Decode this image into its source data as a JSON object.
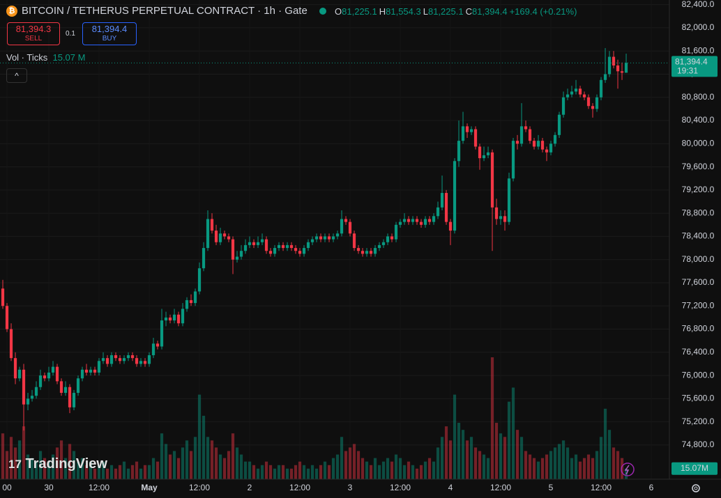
{
  "header": {
    "symbol": "BITCOIN / TETHERUS PERPETUAL CONTRACT · 1h · Gate",
    "ohlc": [
      {
        "label": "O",
        "value": "81,225.1"
      },
      {
        "label": "H",
        "value": "81,554.3"
      },
      {
        "label": "L",
        "value": "81,225.1"
      },
      {
        "label": "C",
        "value": "81,394.4"
      }
    ],
    "change": "+169.4 (+0.21%)",
    "sell_price": "81,394.3",
    "sell_label": "SELL",
    "qty": "0.1",
    "buy_price": "81,394.4",
    "buy_label": "BUY",
    "volume_label": "Vol · Ticks",
    "volume_value": "15.07 M",
    "logo": "TradingView"
  },
  "chart_data": {
    "type": "candlestick",
    "open": [
      77500,
      77200,
      76800,
      76300,
      75950,
      76100,
      75500,
      75600,
      75650,
      75800,
      76000,
      75950,
      76050,
      76150,
      75900,
      75700,
      75800,
      75450,
      75700,
      75950,
      76100,
      76050,
      76100,
      76050,
      76250,
      76300,
      76200,
      76350,
      76300,
      76250,
      76300,
      76350,
      76300,
      76200,
      76250,
      76200,
      76350,
      76550,
      76500,
      76950,
      77000,
      76950,
      77050,
      76900,
      77150,
      77300,
      77250,
      77450,
      77850,
      78200,
      78700,
      78500,
      78300,
      78450,
      78400,
      78350,
      78000,
      78050,
      78150,
      78250,
      78300,
      78250,
      78300,
      78350,
      78150,
      78100,
      78200,
      78250,
      78200,
      78250,
      78200,
      78150,
      78100,
      78200,
      78300,
      78350,
      78400,
      78350,
      78400,
      78350,
      78400,
      78450,
      78700,
      78650,
      78450,
      78200,
      78150,
      78100,
      78150,
      78100,
      78200,
      78250,
      78300,
      78400,
      78350,
      78600,
      78650,
      78700,
      78650,
      78700,
      78650,
      78600,
      78700,
      78650,
      78750,
      78900,
      79150,
      78650,
      78500,
      79700,
      80050,
      80300,
      80200,
      80250,
      79950,
      79750,
      79800,
      79850,
      78900,
      78700,
      78750,
      78650,
      79400,
      80050,
      80000,
      80300,
      80250,
      80050,
      79950,
      80050,
      79900,
      79850,
      80000,
      80150,
      80500,
      80800,
      80850,
      80900,
      80950,
      80850,
      80800,
      80650,
      80600,
      80800,
      81100,
      81200,
      81500,
      81350,
      81250,
      81225.1
    ],
    "high": [
      77650,
      77250,
      76900,
      76400,
      76150,
      76200,
      75700,
      75750,
      75900,
      76100,
      76050,
      76150,
      76250,
      76200,
      75950,
      75900,
      75850,
      75750,
      76000,
      76150,
      76200,
      76150,
      76150,
      76300,
      76400,
      76350,
      76400,
      76400,
      76350,
      76350,
      76400,
      76400,
      76350,
      76300,
      76300,
      76400,
      76650,
      76600,
      77150,
      77100,
      77050,
      77150,
      77100,
      77250,
      77350,
      77400,
      77500,
      77950,
      78300,
      78850,
      78800,
      78600,
      78550,
      78500,
      78450,
      78400,
      78150,
      78250,
      78350,
      78400,
      78350,
      78400,
      78450,
      78400,
      78200,
      78250,
      78300,
      78300,
      78300,
      78300,
      78250,
      78200,
      78250,
      78350,
      78400,
      78450,
      78450,
      78450,
      78450,
      78450,
      78500,
      78850,
      78750,
      78700,
      78500,
      78250,
      78200,
      78200,
      78200,
      78250,
      78300,
      78350,
      78450,
      78450,
      78650,
      78700,
      78800,
      78750,
      78750,
      78750,
      78700,
      78750,
      78750,
      78800,
      79000,
      79450,
      79200,
      78700,
      79750,
      80400,
      80550,
      80350,
      80300,
      80300,
      80000,
      79950,
      79950,
      79900,
      79050,
      78850,
      78850,
      79500,
      80100,
      80150,
      80700,
      80400,
      80300,
      80100,
      80150,
      80100,
      79950,
      80050,
      80200,
      80550,
      80900,
      80950,
      81000,
      81100,
      81000,
      80900,
      80850,
      80700,
      80850,
      81150,
      81650,
      81600,
      81600,
      81450,
      81400,
      81554.3
    ],
    "low": [
      77150,
      76750,
      76250,
      75850,
      75900,
      75050,
      75400,
      75550,
      75600,
      75750,
      75900,
      75900,
      76000,
      75850,
      75650,
      75650,
      75350,
      75400,
      75650,
      75900,
      76000,
      76000,
      76000,
      76000,
      76200,
      76150,
      76150,
      76250,
      76200,
      76200,
      76250,
      76250,
      76150,
      76150,
      76150,
      76150,
      76300,
      76450,
      76450,
      76850,
      76900,
      76900,
      76850,
      76850,
      77100,
      77200,
      77200,
      77400,
      77800,
      78150,
      78450,
      78250,
      78250,
      78350,
      78300,
      77750,
      77950,
      78000,
      78100,
      78200,
      78200,
      78200,
      78250,
      78100,
      78050,
      78050,
      78150,
      78150,
      78150,
      78150,
      78100,
      78050,
      78050,
      78150,
      78250,
      78300,
      78300,
      78300,
      78300,
      78300,
      78350,
      78400,
      78600,
      78400,
      78150,
      78100,
      78050,
      78050,
      78050,
      78050,
      78150,
      78200,
      78250,
      78300,
      78300,
      78550,
      78600,
      78600,
      78600,
      78600,
      78550,
      78550,
      78600,
      78600,
      78700,
      78850,
      78600,
      78250,
      78450,
      79600,
      80000,
      80100,
      80150,
      79900,
      79550,
      79700,
      79750,
      78150,
      78600,
      78600,
      78500,
      78600,
      79350,
      79900,
      79950,
      80200,
      80000,
      79900,
      79900,
      79850,
      79700,
      79800,
      79950,
      80100,
      80450,
      80750,
      80800,
      80850,
      80800,
      80750,
      80600,
      80450,
      80550,
      80750,
      81050,
      81150,
      81300,
      80950,
      81100,
      81225.1
    ],
    "close": [
      77200,
      76800,
      76300,
      75950,
      76100,
      75500,
      75600,
      75650,
      75800,
      76000,
      75950,
      76050,
      76150,
      75900,
      75700,
      75800,
      75450,
      75700,
      75950,
      76100,
      76050,
      76100,
      76050,
      76250,
      76300,
      76200,
      76350,
      76300,
      76250,
      76300,
      76350,
      76300,
      76200,
      76250,
      76200,
      76350,
      76550,
      76500,
      76950,
      77000,
      76950,
      77050,
      76900,
      77150,
      77300,
      77250,
      77450,
      77850,
      78200,
      78700,
      78500,
      78300,
      78450,
      78400,
      78350,
      78000,
      78050,
      78150,
      78250,
      78300,
      78250,
      78300,
      78350,
      78150,
      78100,
      78200,
      78250,
      78200,
      78250,
      78200,
      78150,
      78100,
      78200,
      78300,
      78350,
      78400,
      78350,
      78400,
      78350,
      78400,
      78450,
      78700,
      78650,
      78450,
      78200,
      78150,
      78100,
      78150,
      78100,
      78200,
      78250,
      78300,
      78400,
      78350,
      78600,
      78650,
      78700,
      78650,
      78700,
      78650,
      78600,
      78700,
      78650,
      78750,
      78900,
      79150,
      78650,
      78500,
      79700,
      80050,
      80300,
      80200,
      80250,
      79950,
      79750,
      79800,
      79850,
      78900,
      78700,
      78750,
      78650,
      79400,
      80050,
      80000,
      80300,
      80250,
      80050,
      79950,
      80050,
      79900,
      79850,
      80000,
      80150,
      80500,
      80800,
      80850,
      80900,
      80950,
      80850,
      80800,
      80650,
      80600,
      80800,
      81100,
      81200,
      81500,
      81350,
      81250,
      81225.1,
      81394.4
    ],
    "volume": [
      65,
      40,
      60,
      45,
      55,
      75,
      35,
      30,
      25,
      40,
      30,
      25,
      35,
      45,
      55,
      30,
      50,
      40,
      25,
      30,
      20,
      25,
      15,
      20,
      25,
      15,
      20,
      15,
      20,
      25,
      15,
      20,
      25,
      15,
      20,
      20,
      30,
      25,
      65,
      50,
      35,
      40,
      30,
      45,
      55,
      40,
      60,
      120,
      90,
      60,
      55,
      45,
      35,
      30,
      40,
      65,
      45,
      35,
      25,
      25,
      20,
      15,
      20,
      25,
      20,
      15,
      20,
      20,
      15,
      15,
      20,
      25,
      20,
      15,
      20,
      15,
      20,
      25,
      20,
      30,
      35,
      60,
      40,
      45,
      50,
      40,
      30,
      25,
      20,
      30,
      20,
      25,
      30,
      25,
      35,
      30,
      20,
      25,
      20,
      15,
      20,
      25,
      30,
      25,
      45,
      60,
      75,
      55,
      120,
      80,
      70,
      55,
      60,
      45,
      40,
      35,
      30,
      173,
      80,
      65,
      60,
      110,
      130,
      70,
      60,
      40,
      35,
      30,
      25,
      30,
      35,
      40,
      45,
      50,
      55,
      45,
      30,
      35,
      25,
      30,
      35,
      30,
      40,
      60,
      100,
      70,
      45,
      40,
      30,
      15.07
    ],
    "xlim": [
      -0.67,
      159.33
    ],
    "xticks": [
      {
        "value": 1,
        "label": "00"
      },
      {
        "value": 11,
        "label": "30"
      },
      {
        "value": 23,
        "label": "12:00"
      },
      {
        "value": 35,
        "label": "May"
      },
      {
        "value": 47,
        "label": "12:00"
      },
      {
        "value": 59,
        "label": "2"
      },
      {
        "value": 71,
        "label": "12:00"
      },
      {
        "value": 83,
        "label": "3"
      },
      {
        "value": 95,
        "label": "12:00"
      },
      {
        "value": 107,
        "label": "4"
      },
      {
        "value": 119,
        "label": "12:00"
      },
      {
        "value": 131,
        "label": "5"
      },
      {
        "value": 143,
        "label": "12:00"
      },
      {
        "value": 155,
        "label": "6"
      }
    ],
    "ylim": [
      74210,
      82480
    ],
    "yticks": [
      {
        "value": 74800,
        "label": "74,800.0"
      },
      {
        "value": 75200,
        "label": "75,200.0"
      },
      {
        "value": 75600,
        "label": "75,600.0"
      },
      {
        "value": 76000,
        "label": "76,000.0"
      },
      {
        "value": 76400,
        "label": "76,400.0"
      },
      {
        "value": 76800,
        "label": "76,800.0"
      },
      {
        "value": 77200,
        "label": "77,200.0"
      },
      {
        "value": 77600,
        "label": "77,600.0"
      },
      {
        "value": 78000,
        "label": "78,000.0"
      },
      {
        "value": 78400,
        "label": "78,400.0"
      },
      {
        "value": 78800,
        "label": "78,800.0"
      },
      {
        "value": 79200,
        "label": "79,200.0"
      },
      {
        "value": 79600,
        "label": "79,600.0"
      },
      {
        "value": 80000,
        "label": "80,000.0"
      },
      {
        "value": 80400,
        "label": "80,400.0"
      },
      {
        "value": 80800,
        "label": "80,800.0"
      },
      {
        "value": 81200,
        "label": "81,200.0"
      },
      {
        "value": 81600,
        "label": "81,600.0"
      },
      {
        "value": 82000,
        "label": "82,000.0"
      },
      {
        "value": 82400,
        "label": "82,400.0"
      }
    ],
    "y2lim": [
      0,
      680
    ],
    "last_price_label": "81,394.4",
    "countdown": "19:31",
    "volume_tag": "15.07M",
    "up_color": "#089981",
    "down_color": "#f23645",
    "grid": true
  }
}
